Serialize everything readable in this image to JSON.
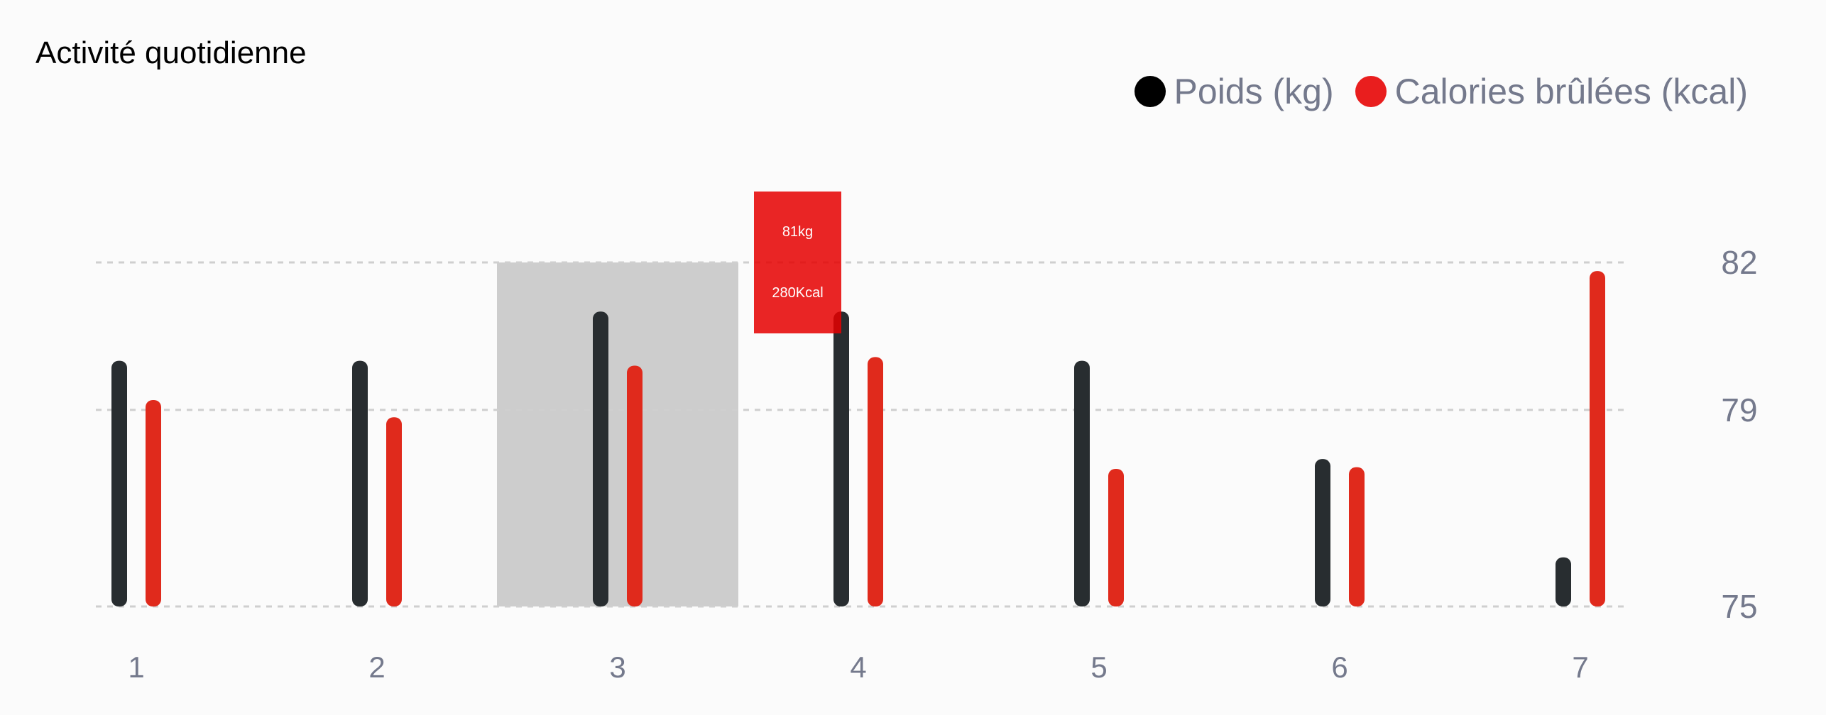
{
  "chart_data": {
    "type": "bar",
    "title": "Activité quotidienne",
    "categories": [
      "1",
      "2",
      "3",
      "4",
      "5",
      "6",
      "7"
    ],
    "series": [
      {
        "name": "Poids (kg)",
        "color": "#282d30",
        "values": [
          80,
          80,
          81,
          81,
          80,
          78,
          76
        ]
      },
      {
        "name": "Calories brûlées (kcal)",
        "color": "#e60000",
        "values": [
          240,
          220,
          280,
          290,
          160,
          162,
          390
        ]
      }
    ],
    "y_axis": {
      "ticks": [
        "75",
        "79",
        "82"
      ],
      "ylim": [
        75,
        82
      ],
      "position": "right"
    },
    "y2_range": [
      0,
      400
    ],
    "grid": "dashed-horizontal",
    "legend": "top-right",
    "active_index": 2,
    "tooltip": {
      "weight": "81kg",
      "calories": "280Kcal"
    }
  }
}
